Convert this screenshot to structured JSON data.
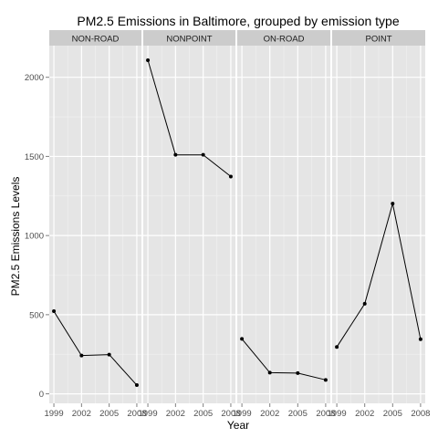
{
  "chart_data": {
    "type": "line",
    "title": "PM2.5 Emissions in Baltimore, grouped by emission type",
    "xlabel": "Year",
    "ylabel": "PM2.5 Emissions Levels",
    "x": [
      1999,
      2002,
      2005,
      2008
    ],
    "x_tick_labels": [
      "1999",
      "2002",
      "2005",
      "2008"
    ],
    "yticks": [
      0,
      500,
      1000,
      1500,
      2000
    ],
    "y_tick_labels": [
      "0",
      "500",
      "1000",
      "1500",
      "2000"
    ],
    "ylim": [
      -60,
      2200
    ],
    "xlim": [
      1998.5,
      2008.5
    ],
    "facets": [
      {
        "label": "NON-ROAD",
        "values": [
          522,
          242,
          248,
          55
        ]
      },
      {
        "label": "NONPOINT",
        "values": [
          2108,
          1510,
          1510,
          1373
        ]
      },
      {
        "label": "ON-ROAD",
        "values": [
          347,
          134,
          131,
          88
        ]
      },
      {
        "label": "POINT",
        "values": [
          296,
          569,
          1202,
          345
        ]
      }
    ],
    "grid": true,
    "legend": "none",
    "colors": {
      "panel_background": "#e5e5e5",
      "grid_major": "#ffffff",
      "grid_minor": "#f2f2f2",
      "strip_background": "#cccccc",
      "line": "#000000",
      "point": "#000000"
    }
  }
}
